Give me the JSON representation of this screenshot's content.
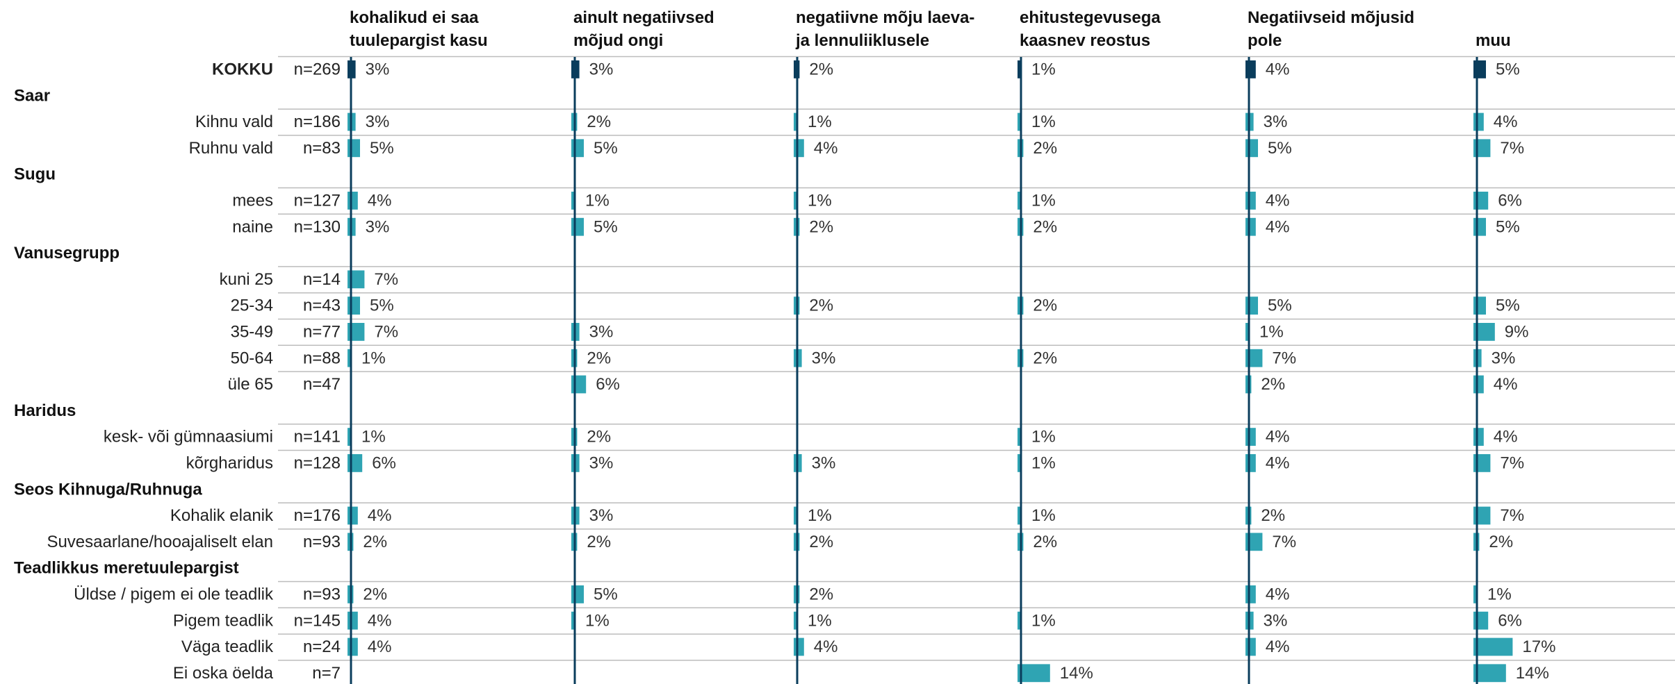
{
  "chart_data": {
    "type": "bar",
    "orientation": "horizontal-small-multiples",
    "unit": "%",
    "colors": {
      "total": "#0a3d5c",
      "segment": "#2fa4b3",
      "axis": "#0a3d5c",
      "rule": "#bcbcbc"
    },
    "columns": [
      "kohalikud ei saa tuulepargist kasu",
      "ainult negatiivsed mõjud ongi",
      "negatiivne mõju laeva- ja lennuliiklusele",
      "ehitustegevusega kaasnev reostus",
      "Negatiivseid mõjusid pole",
      "muu"
    ],
    "rows": [
      {
        "kind": "total",
        "label": "KOKKU",
        "n": "n=269",
        "values": [
          3,
          3,
          2,
          1,
          4,
          5
        ]
      },
      {
        "kind": "group",
        "label": "Saar"
      },
      {
        "kind": "item",
        "label": "Kihnu vald",
        "n": "n=186",
        "values": [
          3,
          2,
          1,
          1,
          3,
          4
        ]
      },
      {
        "kind": "item",
        "label": "Ruhnu vald",
        "n": "n=83",
        "values": [
          5,
          5,
          4,
          2,
          5,
          7
        ]
      },
      {
        "kind": "group",
        "label": "Sugu"
      },
      {
        "kind": "item",
        "label": "mees",
        "n": "n=127",
        "values": [
          4,
          1,
          1,
          1,
          4,
          6
        ]
      },
      {
        "kind": "item",
        "label": "naine",
        "n": "n=130",
        "values": [
          3,
          5,
          2,
          2,
          4,
          5
        ]
      },
      {
        "kind": "group",
        "label": "Vanusegrupp"
      },
      {
        "kind": "item",
        "label": "kuni 25",
        "n": "n=14",
        "values": [
          7,
          null,
          null,
          null,
          null,
          null
        ]
      },
      {
        "kind": "item",
        "label": "25-34",
        "n": "n=43",
        "values": [
          5,
          null,
          2,
          2,
          5,
          5
        ]
      },
      {
        "kind": "item",
        "label": "35-49",
        "n": "n=77",
        "values": [
          7,
          3,
          null,
          null,
          1,
          9
        ]
      },
      {
        "kind": "item",
        "label": "50-64",
        "n": "n=88",
        "values": [
          1,
          2,
          3,
          2,
          7,
          3
        ]
      },
      {
        "kind": "item",
        "label": "üle 65",
        "n": "n=47",
        "values": [
          null,
          6,
          null,
          null,
          2,
          4
        ]
      },
      {
        "kind": "group",
        "label": "Haridus"
      },
      {
        "kind": "item",
        "label": "kesk- või gümnaasiumi",
        "n": "n=141",
        "values": [
          1,
          2,
          null,
          1,
          4,
          4
        ]
      },
      {
        "kind": "item",
        "label": "kõrgharidus",
        "n": "n=128",
        "values": [
          6,
          3,
          3,
          1,
          4,
          7
        ]
      },
      {
        "kind": "group",
        "label": "Seos Kihnuga/Ruhnuga"
      },
      {
        "kind": "item",
        "label": "Kohalik elanik",
        "n": "n=176",
        "values": [
          4,
          3,
          1,
          1,
          2,
          7
        ]
      },
      {
        "kind": "item",
        "label": "Suvesaarlane/hooajaliselt elan",
        "n": "n=93",
        "values": [
          2,
          2,
          2,
          2,
          7,
          2
        ]
      },
      {
        "kind": "group",
        "label": "Teadlikkus meretuulepargist"
      },
      {
        "kind": "item",
        "label": "Üldse / pigem ei ole teadlik",
        "n": "n=93",
        "values": [
          2,
          5,
          2,
          null,
          4,
          1
        ]
      },
      {
        "kind": "item",
        "label": "Pigem teadlik",
        "n": "n=145",
        "values": [
          4,
          1,
          1,
          1,
          3,
          6
        ]
      },
      {
        "kind": "item",
        "label": "Väga teadlik",
        "n": "n=24",
        "values": [
          4,
          null,
          4,
          null,
          4,
          17
        ]
      },
      {
        "kind": "item",
        "label": "Ei oska öelda",
        "n": "n=7",
        "values": [
          null,
          null,
          null,
          14,
          null,
          14
        ]
      }
    ]
  }
}
